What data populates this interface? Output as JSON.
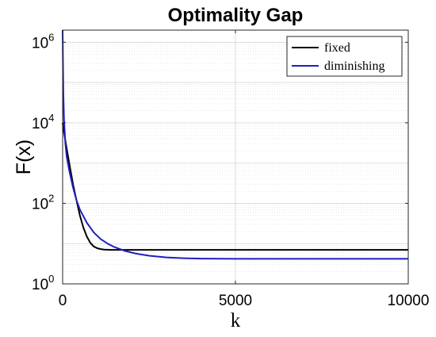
{
  "chart_data": {
    "type": "line",
    "title": "Optimality Gap",
    "xlabel": "k",
    "ylabel": "F(x)",
    "xlim": [
      0,
      10000
    ],
    "ylim": [
      1,
      2000000
    ],
    "yscale": "log",
    "x_ticks": [
      {
        "value": 0,
        "label": "0"
      },
      {
        "value": 5000,
        "label": "5000"
      },
      {
        "value": 10000,
        "label": "10000"
      }
    ],
    "y_ticks": [
      {
        "value": 1,
        "base": "10",
        "exp": "0"
      },
      {
        "value": 100,
        "base": "10",
        "exp": "2"
      },
      {
        "value": 10000,
        "base": "10",
        "exp": "4"
      },
      {
        "value": 1000000,
        "base": "10",
        "exp": "6"
      }
    ],
    "grid": true,
    "minor_grid": true,
    "legend_position": "top-right",
    "series": [
      {
        "name": "fixed",
        "color": "#000000",
        "x": [
          0,
          30,
          100,
          200,
          300,
          400,
          500,
          600,
          700,
          800,
          900,
          1000,
          1100,
          1200,
          1400,
          1600,
          1800,
          2000,
          2500,
          3000,
          4000,
          5000,
          6000,
          7000,
          8000,
          9000,
          10000
        ],
        "y": [
          10000,
          6500,
          2800,
          900,
          300,
          120,
          50,
          25,
          15,
          10.5,
          8.5,
          7.7,
          7.3,
          7.1,
          7.0,
          7.0,
          7.0,
          7.0,
          7.0,
          7.0,
          7.0,
          7.0,
          7.0,
          7.0,
          7.0,
          7.0,
          7.0
        ]
      },
      {
        "name": "diminishing",
        "color": "#1f1fbf",
        "x": [
          0,
          5,
          10,
          20,
          40,
          80,
          120,
          200,
          300,
          400,
          500,
          700,
          900,
          1100,
          1300,
          1500,
          1800,
          2100,
          2500,
          3000,
          3500,
          4000,
          5000,
          6000,
          7000,
          8000,
          9000,
          10000
        ],
        "y": [
          2000000,
          800000,
          300000,
          60000,
          12000,
          3000,
          1400,
          600,
          250,
          120,
          70,
          33,
          19,
          13,
          10,
          8.2,
          6.6,
          5.7,
          5.0,
          4.55,
          4.35,
          4.25,
          4.2,
          4.2,
          4.2,
          4.2,
          4.2,
          4.2
        ]
      }
    ]
  }
}
